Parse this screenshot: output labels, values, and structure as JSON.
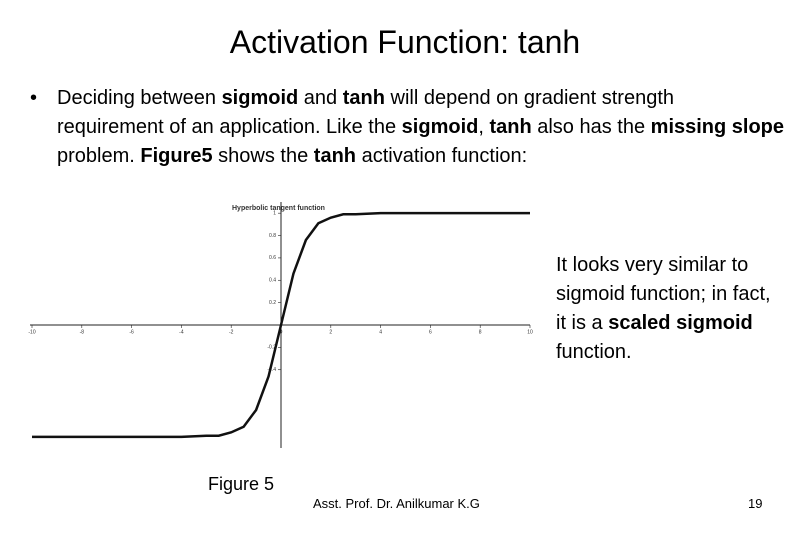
{
  "slide": {
    "title": "Activation Function: tanh",
    "bullet": [
      {
        "text": "Deciding between "
      },
      {
        "text": "sigmoid",
        "bold": true
      },
      {
        "text": " and "
      },
      {
        "text": "tanh",
        "bold": true
      },
      {
        "text": " will depend on gradient strength requirement of an application. Like the "
      },
      {
        "text": "sigmoid",
        "bold": true
      },
      {
        "text": ", "
      },
      {
        "text": "tanh",
        "bold": true
      },
      {
        "text": " also has the "
      },
      {
        "text": "missing slope",
        "bold": true
      },
      {
        "text": " problem. "
      },
      {
        "text": "Figure5",
        "bold": true
      },
      {
        "text": " shows the "
      },
      {
        "text": "tanh",
        "bold": true
      },
      {
        "text": " activation function:"
      }
    ],
    "side_note": [
      {
        "text": "It looks very similar to sigmoid function; in fact, it is a "
      },
      {
        "text": "scaled sigmoid",
        "bold": true
      },
      {
        "text": " function."
      }
    ],
    "caption": "Figure 5",
    "footer": "Asst. Prof. Dr. Anilkumar K.G",
    "page_number": "19"
  },
  "chart_data": {
    "type": "line",
    "title": "Hyperbolic tangent function",
    "x": [
      -10,
      -6,
      -4,
      -3,
      -2.5,
      -2,
      -1.5,
      -1,
      -0.5,
      0,
      0.5,
      1,
      1.5,
      2,
      2.5,
      3,
      4,
      6,
      10
    ],
    "values": [
      -1,
      -1,
      -1,
      -0.99,
      -0.99,
      -0.96,
      -0.91,
      -0.76,
      -0.46,
      0,
      0.46,
      0.76,
      0.91,
      0.96,
      0.99,
      0.99,
      1,
      1,
      1
    ],
    "color": "#111111",
    "xlim": [
      -10,
      10
    ],
    "ylim": [
      -1.1,
      1.1
    ],
    "xticks": [
      -10,
      -8,
      -6,
      -4,
      -2,
      0,
      2,
      4,
      6,
      8,
      10
    ],
    "yticks": [
      1,
      0.8,
      0.6,
      0.4,
      0.2,
      -0.2,
      -0.4
    ]
  }
}
